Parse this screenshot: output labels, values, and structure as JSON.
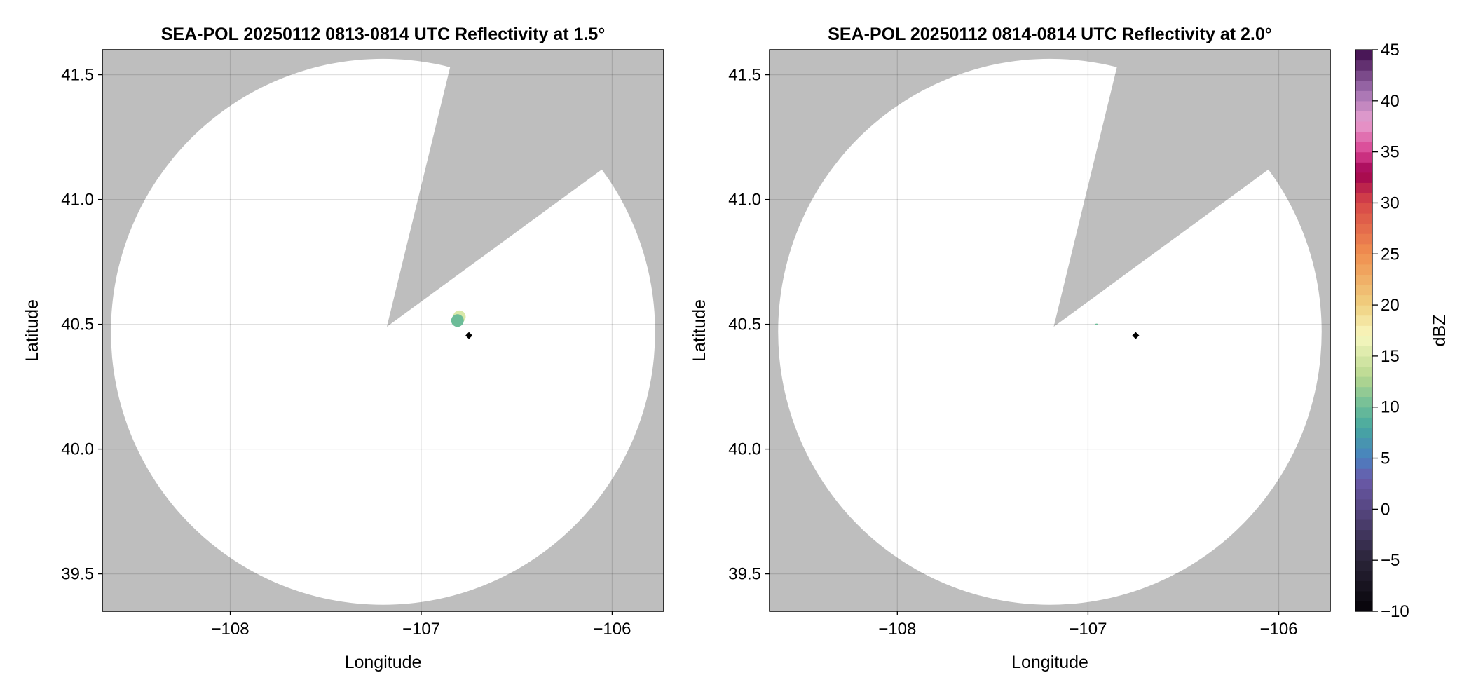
{
  "chart_data": [
    {
      "type": "heatmap",
      "title": "SEA-POL 20250112 0813-0814 UTC Reflectivity at 1.5°",
      "xlabel": "Longitude",
      "ylabel": "Latitude",
      "xlim": [
        -108.67,
        -105.73
      ],
      "ylim": [
        39.35,
        41.6
      ],
      "xticks": [
        -108,
        -107,
        -106
      ],
      "xtick_labels": [
        "−108",
        "−107",
        "−106"
      ],
      "yticks": [
        39.5,
        40.0,
        40.5,
        41.0,
        41.5
      ],
      "ytick_labels": [
        "39.5",
        "40.0",
        "40.5",
        "41.0",
        "41.5"
      ],
      "grid": true,
      "background_color": "#bebebe",
      "coverage": {
        "center": [
          -107.2,
          40.47
        ],
        "radius_lon": 1.425,
        "radius_lat": 1.094,
        "blocked_sector": [
          [
            -107.18,
            40.49
          ],
          [
            -106.85,
            41.526
          ],
          [
            -106.06,
            41.117
          ]
        ]
      },
      "echoes": [
        {
          "lon": -106.8,
          "lat": 40.53,
          "dbz": 15
        },
        {
          "lon": -106.81,
          "lat": 40.515,
          "dbz": 10
        }
      ],
      "marker": {
        "lon": -106.75,
        "lat": 40.455,
        "shape": "diamond",
        "color": "#000000"
      }
    },
    {
      "type": "heatmap",
      "title": "SEA-POL 20250112 0814-0814 UTC Reflectivity at 2.0°",
      "xlabel": "Longitude",
      "ylabel": "Latitude",
      "xlim": [
        -108.67,
        -105.73
      ],
      "ylim": [
        39.35,
        41.6
      ],
      "xticks": [
        -108,
        -107,
        -106
      ],
      "xtick_labels": [
        "−108",
        "−107",
        "−106"
      ],
      "yticks": [
        39.5,
        40.0,
        40.5,
        41.0,
        41.5
      ],
      "ytick_labels": [
        "39.5",
        "40.0",
        "40.5",
        "41.0",
        "41.5"
      ],
      "grid": true,
      "background_color": "#bebebe",
      "coverage": {
        "center": [
          -107.2,
          40.47
        ],
        "radius_lon": 1.425,
        "radius_lat": 1.094,
        "blocked_sector": [
          [
            -107.18,
            40.49
          ],
          [
            -106.85,
            41.526
          ],
          [
            -106.06,
            41.117
          ]
        ]
      },
      "echoes": [
        {
          "lon": -106.955,
          "lat": 40.5,
          "dbz": 10
        }
      ],
      "marker": {
        "lon": -106.75,
        "lat": 40.455,
        "shape": "diamond",
        "color": "#000000"
      }
    }
  ],
  "colorbar": {
    "label": "dBZ",
    "range": [
      -10,
      45
    ],
    "ticks": [
      -10,
      -5,
      0,
      5,
      10,
      15,
      20,
      25,
      30,
      35,
      40,
      45
    ],
    "tick_labels": [
      "−10",
      "−5",
      "0",
      "5",
      "10",
      "15",
      "20",
      "25",
      "30",
      "35",
      "40",
      "45"
    ],
    "colormap": [
      [
        -10,
        "#050308"
      ],
      [
        -5,
        "#2a2438"
      ],
      [
        0,
        "#564680"
      ],
      [
        3,
        "#6a5aaa"
      ],
      [
        5,
        "#4a80c0"
      ],
      [
        8,
        "#46a8a0"
      ],
      [
        10,
        "#6cbc98"
      ],
      [
        13,
        "#b8d890"
      ],
      [
        17,
        "#f8f8c0"
      ],
      [
        20,
        "#f0d080"
      ],
      [
        25,
        "#f09050"
      ],
      [
        30,
        "#d84848"
      ],
      [
        33,
        "#a00050"
      ],
      [
        35,
        "#d84090"
      ],
      [
        38,
        "#e8a0d0"
      ],
      [
        41,
        "#a070b0"
      ],
      [
        45,
        "#3c0a4a"
      ]
    ]
  }
}
